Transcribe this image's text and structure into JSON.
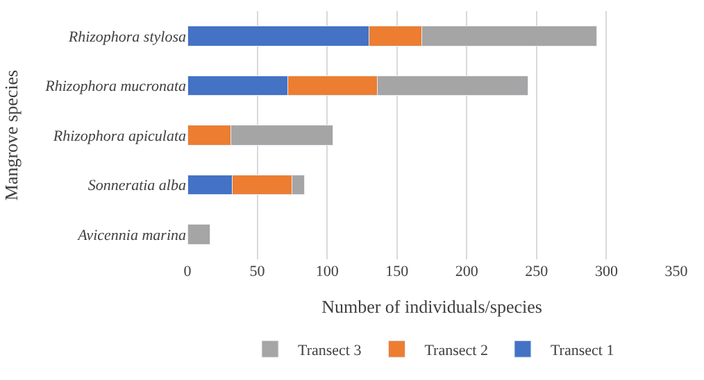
{
  "chart_data": {
    "type": "bar",
    "orientation": "horizontal",
    "stacked": true,
    "xlabel": "Number of individuals/species",
    "ylabel": "Mangrove species",
    "categories": [
      "Rhizophora stylosa",
      "Rhizophora mucronata",
      "Rhizophora apiculata",
      "Sonneratia alba",
      "Avicennia marina"
    ],
    "series": [
      {
        "name": "Transect 1",
        "color": "#4472c4",
        "values": [
          130,
          72,
          0,
          32,
          0
        ]
      },
      {
        "name": "Transect 2",
        "color": "#ed7d31",
        "values": [
          38,
          64,
          31,
          43,
          0
        ]
      },
      {
        "name": "Transect 3",
        "color": "#a5a5a5",
        "values": [
          125,
          108,
          73,
          9,
          16
        ]
      }
    ],
    "xlim": [
      0,
      350
    ],
    "xticks": [
      0,
      50,
      100,
      150,
      200,
      250,
      300,
      350
    ],
    "grid": "x",
    "legend": "bottom"
  }
}
